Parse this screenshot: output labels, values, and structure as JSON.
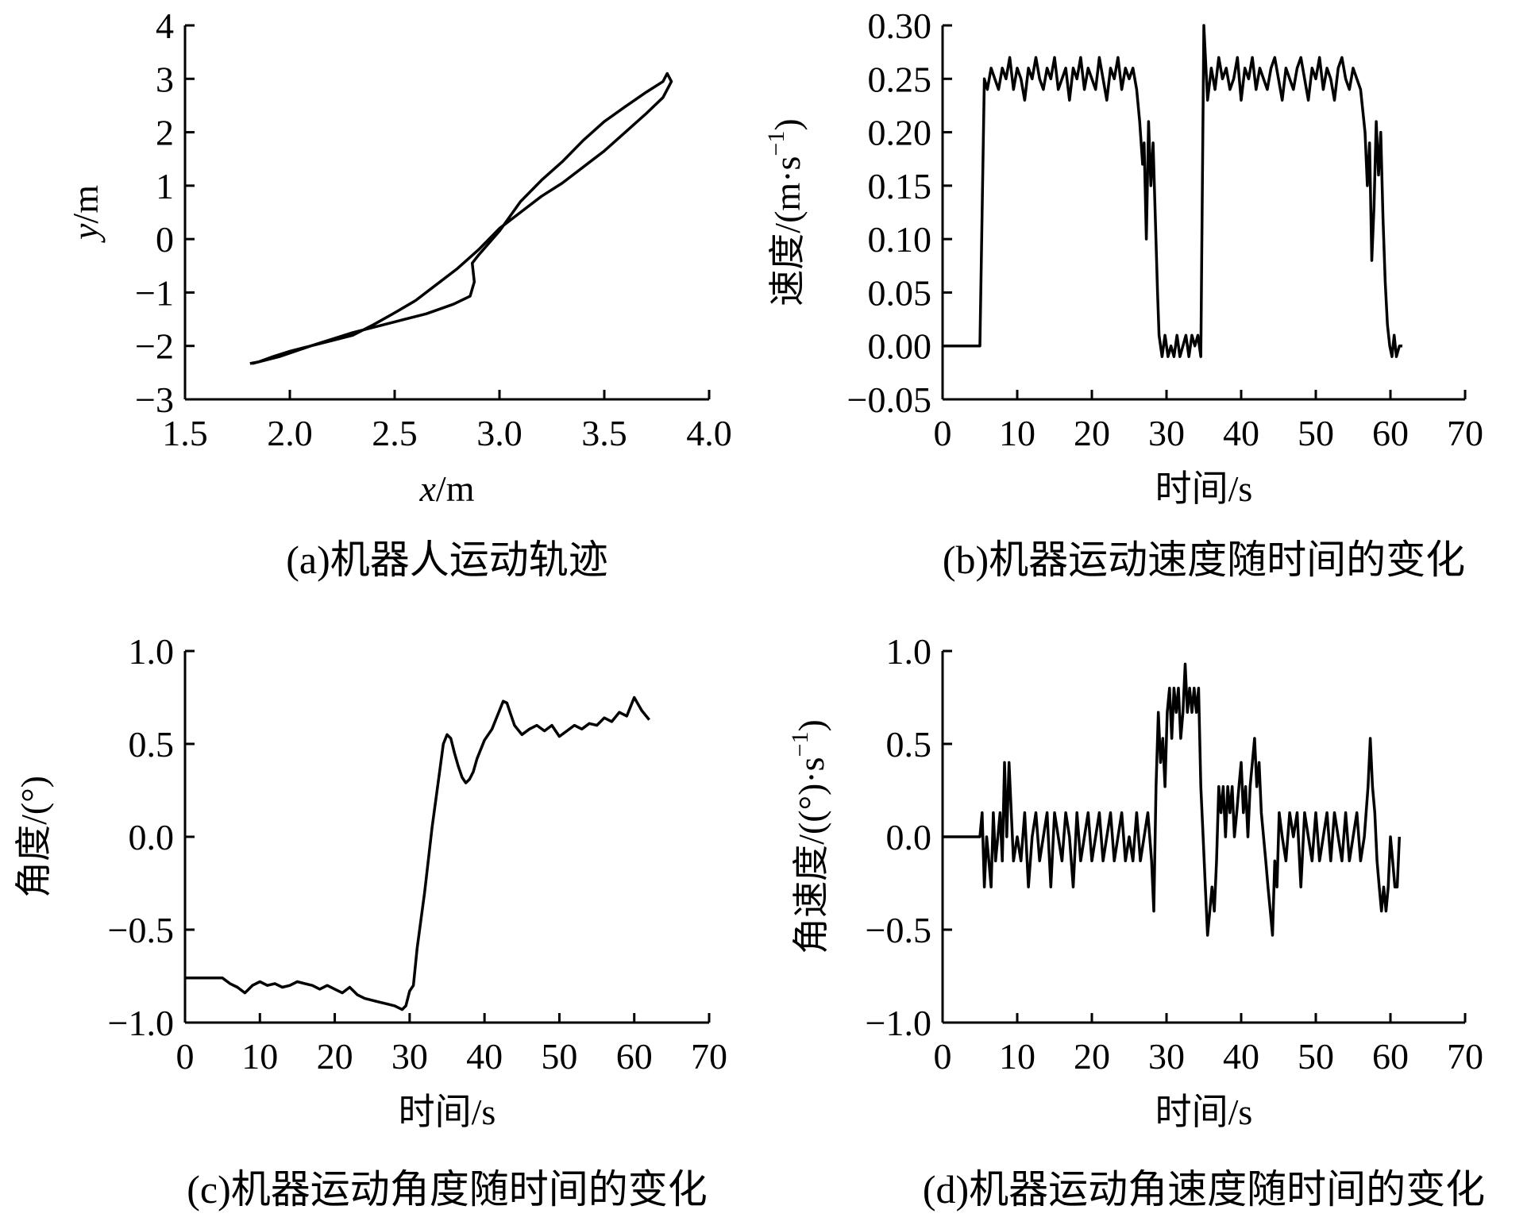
{
  "chart_data": [
    {
      "id": "a",
      "type": "line",
      "caption": "(a)机器人运动轨迹",
      "xlabel": "x/m",
      "xlabel_var": "x",
      "xlabel_unit": "/m",
      "ylabel": "y/m",
      "ylabel_var": "y",
      "ylabel_unit": "/m",
      "xlim": [
        1.5,
        4.0
      ],
      "ylim": [
        -3,
        4
      ],
      "xticks": [
        1.5,
        2.0,
        2.5,
        3.0,
        3.5,
        4.0
      ],
      "xtick_labels": [
        "1.5",
        "2.0",
        "2.5",
        "3.0",
        "3.5",
        "4.0"
      ],
      "yticks": [
        -3,
        -2,
        -1,
        0,
        1,
        2,
        3,
        4
      ],
      "ytick_labels": [
        "−3",
        "−2",
        "−1",
        "0",
        "1",
        "2",
        "3",
        "4"
      ],
      "series": [
        {
          "x": [
            1.82,
            1.95,
            2.1,
            2.3,
            2.5,
            2.65,
            2.78,
            2.86,
            2.88,
            2.87,
            2.9,
            3.0,
            3.1,
            3.2,
            3.3,
            3.4,
            3.5,
            3.6,
            3.7,
            3.78,
            3.8,
            3.82,
            3.78,
            3.7,
            3.6,
            3.5,
            3.45,
            3.3,
            3.2,
            3.1,
            3.0,
            2.9,
            2.8,
            2.7,
            2.6,
            2.5,
            2.4,
            2.3,
            2.2,
            2.1,
            2.0,
            1.92,
            1.85,
            1.81
          ],
          "y": [
            -2.33,
            -2.2,
            -2.0,
            -1.75,
            -1.55,
            -1.4,
            -1.22,
            -1.07,
            -0.8,
            -0.45,
            -0.3,
            0.15,
            0.7,
            1.1,
            1.45,
            1.85,
            2.2,
            2.48,
            2.75,
            2.95,
            3.1,
            2.95,
            2.65,
            2.35,
            2.0,
            1.65,
            1.5,
            1.05,
            0.8,
            0.5,
            0.2,
            -0.2,
            -0.55,
            -0.85,
            -1.15,
            -1.38,
            -1.6,
            -1.8,
            -1.9,
            -2.0,
            -2.1,
            -2.2,
            -2.3,
            -2.33
          ]
        }
      ]
    },
    {
      "id": "b",
      "type": "line",
      "caption": "(b)机器运动速度随时间的变化",
      "xlabel": "时间/s",
      "ylabel": "速度/(m·s",
      "ylabel_sup": "−1",
      "ylabel_end": ")",
      "xlim": [
        0,
        70
      ],
      "ylim": [
        -0.05,
        0.3
      ],
      "xticks": [
        0,
        10,
        20,
        30,
        40,
        50,
        60,
        70
      ],
      "xtick_labels": [
        "0",
        "10",
        "20",
        "30",
        "40",
        "50",
        "60",
        "70"
      ],
      "yticks": [
        -0.05,
        0.0,
        0.05,
        0.1,
        0.15,
        0.2,
        0.25,
        0.3
      ],
      "ytick_labels": [
        "−0.05",
        "0.00",
        "0.05",
        "0.10",
        "0.15",
        "0.20",
        "0.25",
        "0.30"
      ],
      "series": [
        {
          "x": [
            0,
            5.0,
            5.6,
            6.0,
            6.5,
            7.0,
            7.5,
            8.0,
            8.5,
            9.0,
            9.5,
            10.0,
            10.5,
            11.0,
            11.5,
            12.0,
            12.5,
            13.0,
            13.5,
            14.0,
            14.5,
            15.0,
            15.5,
            16.0,
            16.5,
            17.0,
            17.5,
            18.0,
            18.5,
            19.0,
            19.5,
            20.0,
            20.5,
            21.0,
            21.5,
            22.0,
            22.5,
            23.0,
            23.5,
            24.0,
            24.5,
            25.0,
            25.5,
            26.0,
            26.4,
            26.8,
            27.0,
            27.3,
            27.6,
            27.9,
            28.2,
            28.5,
            28.8,
            29.0,
            29.4,
            29.8,
            30.2,
            30.6,
            31.0,
            31.4,
            31.8,
            32.2,
            32.6,
            33.0,
            33.4,
            33.8,
            34.2,
            34.6,
            35.0,
            35.5,
            36.0,
            36.5,
            37.0,
            37.5,
            38.0,
            38.5,
            39.0,
            39.5,
            40.0,
            40.5,
            41.0,
            41.5,
            42.0,
            42.5,
            43.0,
            43.5,
            44.0,
            44.5,
            45.0,
            45.5,
            46.0,
            46.5,
            47.0,
            47.5,
            48.0,
            48.5,
            49.0,
            49.5,
            50.0,
            50.5,
            51.0,
            51.5,
            52.0,
            52.5,
            53.0,
            53.5,
            54.0,
            54.5,
            55.0,
            55.5,
            56.0,
            56.3,
            56.6,
            56.9,
            57.2,
            57.5,
            57.8,
            58.1,
            58.4,
            58.7,
            59.0,
            59.3,
            59.6,
            59.9,
            60.2,
            60.5,
            60.8,
            61.2,
            61.6
          ],
          "y": [
            0.0,
            0.0,
            0.25,
            0.24,
            0.26,
            0.25,
            0.24,
            0.26,
            0.25,
            0.27,
            0.24,
            0.26,
            0.25,
            0.23,
            0.26,
            0.25,
            0.27,
            0.25,
            0.24,
            0.26,
            0.25,
            0.27,
            0.24,
            0.25,
            0.26,
            0.23,
            0.26,
            0.25,
            0.27,
            0.24,
            0.26,
            0.25,
            0.24,
            0.27,
            0.25,
            0.23,
            0.26,
            0.25,
            0.27,
            0.24,
            0.26,
            0.25,
            0.26,
            0.24,
            0.21,
            0.17,
            0.19,
            0.1,
            0.21,
            0.15,
            0.19,
            0.12,
            0.05,
            0.01,
            -0.01,
            0.01,
            -0.01,
            0.0,
            -0.01,
            0.01,
            -0.01,
            0.0,
            0.01,
            -0.01,
            0.01,
            0.0,
            0.01,
            -0.01,
            0.3,
            0.23,
            0.26,
            0.24,
            0.27,
            0.25,
            0.26,
            0.24,
            0.25,
            0.27,
            0.23,
            0.26,
            0.25,
            0.27,
            0.24,
            0.26,
            0.25,
            0.24,
            0.26,
            0.27,
            0.25,
            0.23,
            0.26,
            0.25,
            0.24,
            0.26,
            0.27,
            0.25,
            0.23,
            0.26,
            0.25,
            0.27,
            0.24,
            0.26,
            0.25,
            0.23,
            0.26,
            0.27,
            0.25,
            0.24,
            0.26,
            0.25,
            0.24,
            0.22,
            0.2,
            0.15,
            0.19,
            0.08,
            0.13,
            0.21,
            0.16,
            0.2,
            0.12,
            0.06,
            0.02,
            0.0,
            -0.01,
            0.01,
            -0.01,
            0.0,
            0.0
          ]
        }
      ]
    },
    {
      "id": "c",
      "type": "line",
      "caption": "(c)机器运动角度随时间的变化",
      "xlabel": "时间/s",
      "ylabel": "角度/(°)",
      "xlim": [
        0,
        70
      ],
      "ylim": [
        -1.0,
        1.0
      ],
      "xticks": [
        0,
        10,
        20,
        30,
        40,
        50,
        60,
        70
      ],
      "xtick_labels": [
        "0",
        "10",
        "20",
        "30",
        "40",
        "50",
        "60",
        "70"
      ],
      "yticks": [
        -1.0,
        -0.5,
        0.0,
        0.5,
        1.0
      ],
      "ytick_labels": [
        "−1.0",
        "−0.5",
        "0.0",
        "0.5",
        "1.0"
      ],
      "series": [
        {
          "x": [
            0,
            5,
            6,
            7,
            8,
            9,
            10,
            11,
            12,
            13,
            14,
            15,
            16,
            17,
            18,
            19,
            20,
            21,
            22,
            23,
            24,
            25,
            26,
            27,
            28,
            29,
            29.5,
            30,
            30.5,
            31,
            32,
            33,
            34,
            34.5,
            35,
            35.5,
            36,
            36.5,
            37,
            37.5,
            38,
            38.5,
            39,
            40,
            41,
            42,
            42.5,
            43,
            43.5,
            44,
            45,
            46,
            47,
            48,
            49,
            50,
            51,
            52,
            53,
            54,
            55,
            56,
            57,
            58,
            59,
            60,
            61,
            62
          ],
          "y": [
            -0.76,
            -0.76,
            -0.79,
            -0.81,
            -0.84,
            -0.8,
            -0.78,
            -0.8,
            -0.79,
            -0.81,
            -0.8,
            -0.78,
            -0.79,
            -0.8,
            -0.82,
            -0.8,
            -0.82,
            -0.84,
            -0.81,
            -0.85,
            -0.87,
            -0.88,
            -0.89,
            -0.9,
            -0.91,
            -0.93,
            -0.91,
            -0.83,
            -0.8,
            -0.6,
            -0.3,
            0.05,
            0.35,
            0.5,
            0.55,
            0.53,
            0.45,
            0.38,
            0.32,
            0.29,
            0.31,
            0.35,
            0.42,
            0.52,
            0.58,
            0.68,
            0.73,
            0.72,
            0.66,
            0.6,
            0.55,
            0.58,
            0.6,
            0.57,
            0.6,
            0.54,
            0.57,
            0.6,
            0.58,
            0.61,
            0.6,
            0.64,
            0.62,
            0.67,
            0.65,
            0.75,
            0.68,
            0.63
          ]
        }
      ]
    },
    {
      "id": "d",
      "type": "line",
      "caption": "(d)机器运动角速度随时间的变化",
      "xlabel": "时间/s",
      "ylabel": "角速度/((°)·s",
      "ylabel_sup": "−1",
      "ylabel_end": ")",
      "xlim": [
        0,
        70
      ],
      "ylim": [
        -1.0,
        1.0
      ],
      "xticks": [
        0,
        10,
        20,
        30,
        40,
        50,
        60,
        70
      ],
      "xtick_labels": [
        "0",
        "10",
        "20",
        "30",
        "40",
        "50",
        "60",
        "70"
      ],
      "yticks": [
        -1.0,
        -0.5,
        0.0,
        0.5,
        1.0
      ],
      "ytick_labels": [
        "−1.0",
        "−0.5",
        "0.0",
        "0.5",
        "1.0"
      ],
      "series": [
        {
          "x": [
            0,
            5.0,
            5.3,
            5.6,
            5.9,
            6.2,
            6.5,
            6.8,
            7.1,
            7.4,
            7.7,
            8.0,
            8.3,
            8.6,
            8.9,
            9.2,
            9.5,
            10.0,
            10.5,
            11.0,
            11.5,
            12.0,
            12.5,
            13.0,
            13.5,
            14.0,
            14.5,
            15.0,
            15.5,
            16.0,
            16.5,
            17.0,
            17.5,
            18.0,
            18.5,
            19.0,
            19.5,
            20.0,
            20.5,
            21.0,
            21.5,
            22.0,
            22.5,
            23.0,
            23.5,
            24.0,
            24.5,
            25.0,
            25.5,
            26.0,
            26.5,
            27.0,
            27.5,
            28.0,
            28.3,
            28.6,
            28.9,
            29.2,
            29.5,
            29.8,
            30.1,
            30.4,
            30.7,
            31.0,
            31.3,
            31.6,
            31.9,
            32.2,
            32.5,
            32.8,
            33.1,
            33.4,
            33.7,
            34.0,
            34.3,
            34.6,
            34.9,
            35.2,
            35.5,
            35.8,
            36.1,
            36.4,
            36.7,
            37.0,
            37.3,
            37.6,
            37.9,
            38.2,
            38.5,
            38.8,
            39.1,
            39.4,
            39.7,
            40.0,
            40.3,
            40.6,
            40.9,
            41.2,
            41.5,
            41.8,
            42.1,
            42.4,
            42.7,
            43.0,
            43.3,
            43.6,
            43.9,
            44.2,
            44.5,
            44.8,
            45.1,
            45.5,
            46.0,
            46.5,
            47.0,
            47.5,
            48.0,
            48.5,
            49.0,
            49.5,
            50.0,
            50.5,
            51.0,
            51.5,
            52.0,
            52.5,
            53.0,
            53.5,
            54.0,
            54.5,
            55.0,
            55.5,
            56.0,
            56.5,
            57.0,
            57.3,
            57.6,
            57.9,
            58.2,
            58.5,
            58.8,
            59.1,
            59.4,
            59.7,
            60.0,
            60.3,
            60.6,
            60.9,
            61.2
          ],
          "y": [
            0.0,
            0.0,
            0.13,
            -0.27,
            0.0,
            -0.13,
            -0.27,
            0.13,
            -0.13,
            0.0,
            0.13,
            -0.13,
            0.4,
            0.0,
            0.4,
            0.13,
            -0.13,
            0.0,
            -0.13,
            0.13,
            -0.27,
            0.0,
            0.13,
            -0.13,
            0.0,
            0.13,
            -0.27,
            0.13,
            0.0,
            -0.13,
            0.13,
            0.0,
            -0.27,
            0.13,
            -0.13,
            0.0,
            0.13,
            -0.13,
            0.0,
            0.13,
            -0.13,
            0.0,
            0.13,
            -0.13,
            0.0,
            0.13,
            -0.13,
            0.0,
            -0.13,
            0.13,
            -0.13,
            0.0,
            0.13,
            -0.13,
            -0.4,
            0.27,
            0.67,
            0.4,
            0.53,
            0.27,
            0.67,
            0.8,
            0.53,
            0.8,
            0.67,
            0.8,
            0.53,
            0.67,
            0.93,
            0.67,
            0.8,
            0.67,
            0.8,
            0.67,
            0.8,
            0.27,
            0.0,
            -0.27,
            -0.53,
            -0.4,
            -0.27,
            -0.4,
            -0.13,
            0.27,
            0.13,
            0.27,
            0.0,
            0.27,
            0.13,
            0.27,
            0.0,
            0.13,
            0.27,
            0.4,
            0.13,
            0.27,
            0.0,
            0.27,
            0.4,
            0.53,
            0.27,
            0.4,
            0.13,
            0.0,
            -0.13,
            -0.27,
            -0.4,
            -0.53,
            -0.13,
            -0.27,
            0.13,
            0.0,
            -0.13,
            0.13,
            0.0,
            0.13,
            -0.27,
            0.13,
            0.0,
            -0.13,
            0.13,
            -0.13,
            0.0,
            0.13,
            -0.13,
            0.13,
            0.0,
            -0.13,
            0.13,
            -0.13,
            0.0,
            0.13,
            -0.13,
            0.0,
            0.27,
            0.53,
            0.27,
            0.13,
            -0.13,
            -0.27,
            -0.4,
            -0.27,
            -0.4,
            -0.27,
            0.0,
            -0.13,
            -0.27,
            -0.27,
            0.0
          ]
        }
      ]
    }
  ]
}
